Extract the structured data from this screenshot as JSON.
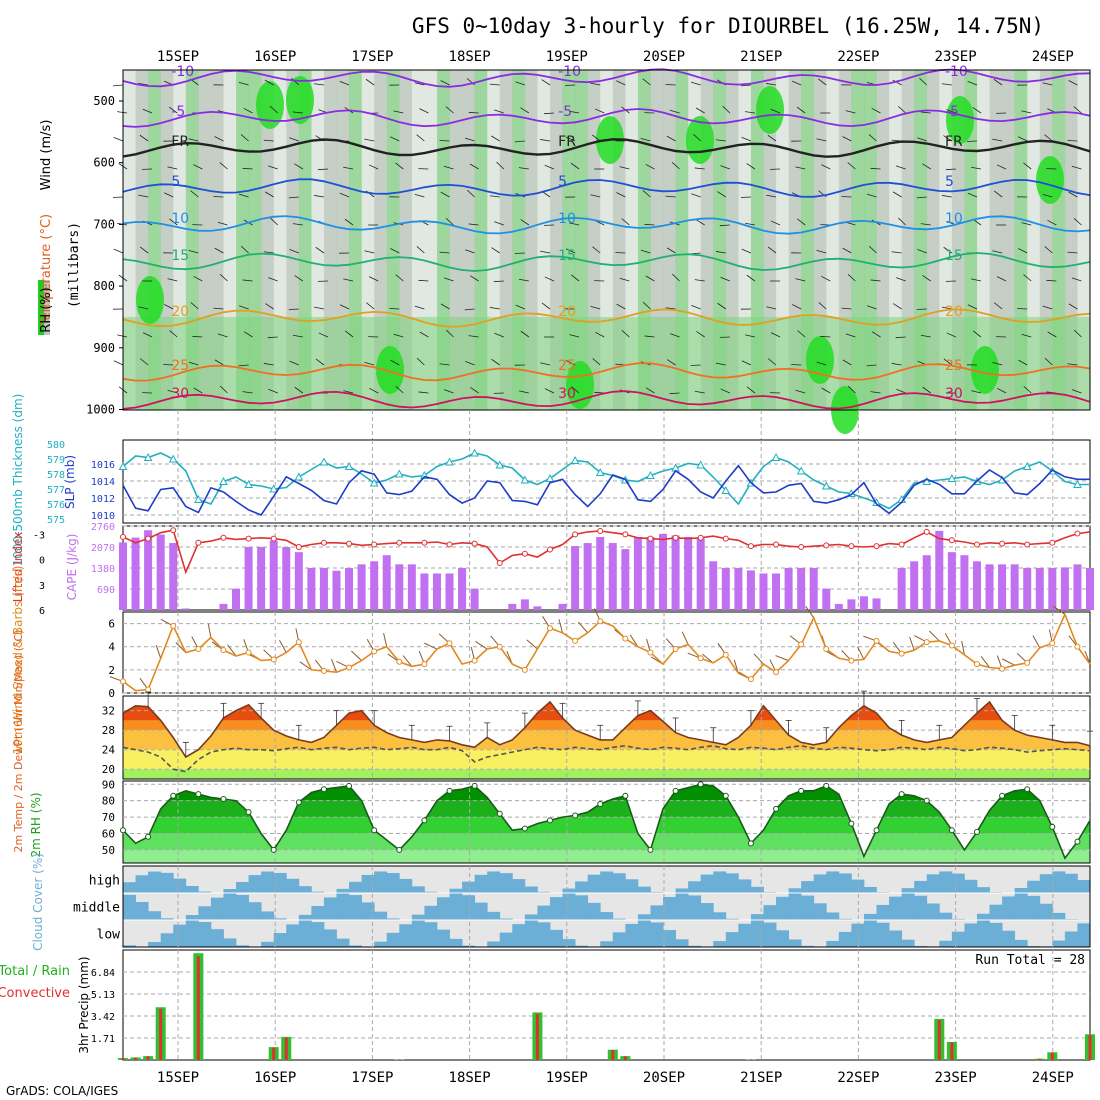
{
  "title": "GFS 0~10day 3-hourly for DIOURBEL (16.25W, 14.75N)",
  "footer": "GrADS: COLA/IGES",
  "chart_data": {
    "type": "meteogram",
    "days": [
      "15SEP",
      "16SEP",
      "17SEP",
      "18SEP",
      "19SEP",
      "20SEP",
      "21SEP",
      "22SEP",
      "23SEP",
      "24SEP"
    ],
    "steps": 78,
    "colors": {
      "rh_green": "#32cd32",
      "rh_light": "#7fd47f",
      "rh_gray": "#bfc8bf",
      "wind_brown": "#8b5a2b"
    },
    "panels": {
      "upper": {
        "ylabel_parts": [
          "Wind (m/s)",
          "Temperature (°C)",
          "RH (%)"
        ],
        "ylabel2": "(millibars)",
        "pressure_levels": [
          500,
          600,
          700,
          800,
          900,
          1000
        ],
        "isotherms": [
          {
            "label": "-10",
            "color": "#8a2be2"
          },
          {
            "label": "-5",
            "color": "#8a2be2"
          },
          {
            "label": "FR",
            "color": "#222222"
          },
          {
            "label": "5",
            "color": "#1e50d2"
          },
          {
            "label": "10",
            "color": "#1e90e6"
          },
          {
            "label": "15",
            "color": "#20b070"
          },
          {
            "label": "20",
            "color": "#e0a020"
          },
          {
            "label": "25",
            "color": "#f07020"
          },
          {
            "label": "30",
            "color": "#d01060"
          }
        ]
      },
      "thickness_slp": {
        "ylabel_left": "1000-500mb Thickness (dm)",
        "ylabel_right": "SLP (mb)",
        "thickness_ticks": [
          575,
          576,
          577,
          578,
          579,
          580
        ],
        "slp_ticks": [
          1010,
          1012,
          1014,
          1016
        ],
        "thickness_color": "#20b0c0",
        "slp_color": "#1e3cc8",
        "thickness": [
          578.5,
          579.2,
          579.1,
          579.4,
          579.0,
          578.2,
          576.3,
          576.0,
          577.5,
          577.8,
          577.3,
          577.2,
          577.0,
          577.1,
          577.8,
          578.3,
          578.8,
          578.4,
          578.5,
          578.0,
          577.4,
          577.6,
          578.0,
          577.8,
          577.9,
          578.5,
          578.8,
          579.0,
          579.4,
          579.2,
          578.6,
          578.4,
          577.6,
          577.3,
          577.7,
          578.3,
          578.9,
          578.8,
          578.1,
          577.9,
          577.6,
          577.5,
          577.9,
          578.2,
          578.4,
          578.7,
          578.6,
          577.8,
          576.9,
          576.0,
          577.4,
          578.5,
          579.1,
          578.8,
          578.2,
          577.6,
          577.2,
          576.8,
          576.7,
          576.4,
          576.1,
          575.7,
          576.3,
          577.4,
          577.5,
          577.6,
          577.7,
          577.8,
          577.5,
          577.3,
          577.6,
          578.2,
          578.5,
          578.8,
          578.2,
          577.5,
          577.3,
          577.3
        ],
        "slp": [
          1013.5,
          1010.8,
          1010.5,
          1013.0,
          1013.2,
          1011.0,
          1010.3,
          1013.2,
          1012.7,
          1011.6,
          1010.6,
          1010.0,
          1012.2,
          1014.5,
          1013.7,
          1012.9,
          1011.7,
          1011.3,
          1013.8,
          1015.2,
          1014.8,
          1012.6,
          1012.4,
          1012.8,
          1014.5,
          1014.2,
          1012.4,
          1011.4,
          1012.0,
          1014.0,
          1013.8,
          1011.7,
          1011.6,
          1011.2,
          1013.8,
          1014.2,
          1012.4,
          1011.0,
          1012.5,
          1014.7,
          1014.2,
          1011.8,
          1011.6,
          1013.0,
          1015.2,
          1014.2,
          1012.7,
          1012.0,
          1014.0,
          1015.8,
          1013.8,
          1012.6,
          1012.7,
          1013.5,
          1013.7,
          1011.6,
          1011.4,
          1011.8,
          1012.4,
          1013.8,
          1011.3,
          1010.2,
          1011.5,
          1013.5,
          1014.2,
          1013.6,
          1012.5,
          1012.5,
          1014.0,
          1015.3,
          1014.4,
          1012.6,
          1012.4,
          1013.7,
          1015.3,
          1014.5,
          1014.2,
          1014.2
        ]
      },
      "cape_li": {
        "ylabel_left": "Lifted Index",
        "ylabel_right": "CAPE (J/kg)",
        "li_ticks": [
          -3,
          0,
          3,
          6
        ],
        "cape_ticks": [
          690,
          1380,
          2070,
          2760
        ],
        "cape_color": "#c070f0",
        "li_color": "#e03030",
        "cape": [
          2220,
          2380,
          2620,
          2480,
          2200,
          50,
          0,
          0,
          200,
          700,
          2070,
          2070,
          2280,
          2070,
          1900,
          1380,
          1380,
          1290,
          1380,
          1500,
          1600,
          1800,
          1500,
          1500,
          1200,
          1200,
          1200,
          1380,
          700,
          0,
          0,
          200,
          350,
          120,
          0,
          200,
          2100,
          2200,
          2400,
          2200,
          2000,
          2400,
          2400,
          2500,
          2450,
          2400,
          2350,
          1600,
          1380,
          1380,
          1300,
          1200,
          1200,
          1380,
          1380,
          1380,
          700,
          200,
          350,
          450,
          380,
          0,
          1380,
          1600,
          1800,
          2600,
          1900,
          1800,
          1600,
          1500,
          1500,
          1500,
          1380,
          1380,
          1380,
          1400,
          1500,
          1380
        ],
        "li": [
          -2.7,
          -2.0,
          -2.5,
          -3.2,
          -3.5,
          1.5,
          -2.0,
          -2.2,
          -2.6,
          -2.4,
          -2.5,
          -2.6,
          -2.5,
          -2.3,
          -1.5,
          -1.8,
          -2.0,
          -2.0,
          -1.9,
          -1.7,
          -1.8,
          -1.9,
          -2.0,
          -2.0,
          -2.0,
          -2.1,
          -1.8,
          -2.0,
          -1.9,
          -1.5,
          0.4,
          -0.5,
          -0.7,
          -0.3,
          -1.2,
          -1.8,
          -3.0,
          -3.3,
          -3.4,
          -3.2,
          -3.0,
          -2.6,
          -2.5,
          -2.4,
          -2.6,
          -2.5,
          -2.6,
          -2.8,
          -2.5,
          -2.3,
          -1.6,
          -1.8,
          -1.8,
          -1.6,
          -1.5,
          -1.6,
          -1.7,
          -1.8,
          -1.6,
          -1.5,
          -1.6,
          -1.9,
          -1.8,
          -2.6,
          -3.3,
          -2.5,
          -2.3,
          -2.1,
          -1.8,
          -2.0,
          -1.9,
          -2.0,
          -1.8,
          -1.9,
          -2.0,
          -2.6,
          -3.1,
          -3.3
        ]
      },
      "wind10m": {
        "ylabel": "10m Wind Speed & Barbs (m/s)",
        "ticks": [
          0,
          2,
          4,
          6
        ],
        "color": "#e08a20",
        "speed": [
          1.0,
          0.2,
          0.3,
          3.0,
          5.8,
          3.5,
          3.8,
          4.8,
          3.7,
          3.2,
          3.5,
          2.8,
          2.9,
          3.5,
          4.4,
          2.0,
          1.9,
          1.8,
          2.2,
          2.8,
          3.6,
          4.0,
          2.7,
          2.3,
          2.5,
          3.8,
          4.3,
          2.5,
          2.8,
          3.8,
          4.0,
          2.5,
          2.0,
          3.8,
          5.6,
          5.2,
          4.5,
          5.2,
          6.2,
          5.8,
          4.7,
          4.0,
          3.5,
          2.5,
          3.8,
          4.2,
          3.0,
          2.6,
          3.3,
          1.7,
          1.2,
          2.5,
          1.8,
          2.8,
          4.2,
          6.5,
          3.8,
          3.0,
          2.8,
          2.9,
          4.5,
          3.6,
          3.4,
          3.7,
          4.4,
          4.5,
          4.1,
          3.3,
          2.5,
          2.2,
          2.1,
          2.4,
          2.6,
          3.9,
          4.3,
          6.8,
          4.0,
          2.5
        ]
      },
      "temp2m": {
        "ylabel": "2m Temp / 2m DewPt (6hr Min/Max) (°C)",
        "ticks": [
          20,
          24,
          28,
          32
        ],
        "temp": [
          31.5,
          33.0,
          32.8,
          30.0,
          26.5,
          22.5,
          24.0,
          26.8,
          30.5,
          32.0,
          33.2,
          30.5,
          28.0,
          26.8,
          26.0,
          25.5,
          26.5,
          29.0,
          31.5,
          32.0,
          29.0,
          27.5,
          26.5,
          26.0,
          25.5,
          26.0,
          25.8,
          25.0,
          24.5,
          26.5,
          25.0,
          26.0,
          28.5,
          31.5,
          33.8,
          30.5,
          28.0,
          27.0,
          26.0,
          26.0,
          28.5,
          31.0,
          32.0,
          29.8,
          27.5,
          26.5,
          26.0,
          25.5,
          25.0,
          26.5,
          29.0,
          33.0,
          30.0,
          27.0,
          25.5,
          25.0,
          25.5,
          28.5,
          31.0,
          33.0,
          31.5,
          28.5,
          27.0,
          26.0,
          25.5,
          26.0,
          26.5,
          29.0,
          31.5,
          33.8,
          30.0,
          28.0,
          27.0,
          26.5,
          26.0,
          25.5,
          25.5,
          24.8
        ],
        "dewpt": [
          24.5,
          24.0,
          23.5,
          22.5,
          20.0,
          19.5,
          22.0,
          23.5,
          24.0,
          24.3,
          24.0,
          24.0,
          23.8,
          24.2,
          24.5,
          24.0,
          24.3,
          24.5,
          24.0,
          24.3,
          24.5,
          24.0,
          24.2,
          24.5,
          24.0,
          24.0,
          24.5,
          23.8,
          21.5,
          22.5,
          23.0,
          23.5,
          24.0,
          24.5,
          24.2,
          24.0,
          24.5,
          24.2,
          24.0,
          24.5,
          24.8,
          24.3,
          24.0,
          24.5,
          24.3,
          24.0,
          24.5,
          24.8,
          24.2,
          24.0,
          24.5,
          24.3,
          24.0,
          24.5,
          24.8,
          24.3,
          24.0,
          24.5,
          24.3,
          24.0,
          23.8,
          24.0,
          24.5,
          24.3,
          24.0,
          24.5,
          24.2,
          23.8,
          24.0,
          24.5,
          24.3,
          24.0,
          23.5,
          23.8,
          24.0,
          24.2,
          24.0,
          23.8
        ],
        "fills": [
          "#e84d10",
          "#f78e1e",
          "#fcc040",
          "#f8f060",
          "#a0f060"
        ]
      },
      "rh2m": {
        "ylabel": "2m RH (%)",
        "ticks": [
          50,
          60,
          70,
          80,
          90
        ],
        "rh": [
          62,
          54,
          58,
          75,
          83,
          86,
          84,
          82,
          81,
          80,
          73,
          60,
          50,
          62,
          79,
          85,
          87,
          88,
          89,
          80,
          62,
          56,
          50,
          58,
          68,
          80,
          86,
          87,
          89,
          82,
          72,
          62,
          63,
          66,
          68,
          70,
          71,
          73,
          78,
          81,
          83,
          60,
          50,
          75,
          86,
          88,
          90,
          89,
          83,
          70,
          54,
          62,
          75,
          83,
          86,
          86,
          89,
          84,
          66,
          46,
          62,
          78,
          84,
          83,
          80,
          73,
          62,
          50,
          61,
          74,
          83,
          86,
          87,
          80,
          64,
          45,
          55,
          68
        ],
        "fills": [
          "#009000",
          "#1cb01c",
          "#32d032",
          "#60e060",
          "#90ee90"
        ]
      },
      "cloud": {
        "ylabel": "Cloud Cover (%)",
        "rows": [
          "high",
          "middle",
          "low"
        ],
        "fill_color": "#6baed6",
        "empty_color": "#e6e6e6"
      },
      "precip": {
        "ylabel": "3hr Precip (mm)",
        "legend_total": "Total / Rain",
        "legend_conv": "Convective",
        "run_total_label": "Run Total = 28",
        "ticks": [
          1.71,
          3.42,
          5.13,
          6.84
        ],
        "total_color": "#30c030",
        "conv_color": "#e03030",
        "total": [
          0.15,
          0.2,
          0.3,
          4.1,
          0,
          0,
          8.3,
          0,
          0,
          0,
          0,
          0,
          1.0,
          1.8,
          0,
          0,
          0,
          0,
          0,
          0,
          0,
          0,
          0.05,
          0,
          0,
          0,
          0,
          0,
          0,
          0,
          0,
          0,
          0,
          3.7,
          0,
          0,
          0,
          0,
          0,
          0.8,
          0.3,
          0,
          0,
          0,
          0,
          0,
          0,
          0,
          0,
          0,
          0.05,
          0,
          0,
          0,
          0,
          0,
          0,
          0,
          0,
          0,
          0,
          0,
          0,
          0,
          0,
          3.2,
          1.4,
          0,
          0,
          0,
          0,
          0,
          0,
          0.1,
          0.6,
          0,
          0,
          2.0
        ]
      }
    }
  }
}
